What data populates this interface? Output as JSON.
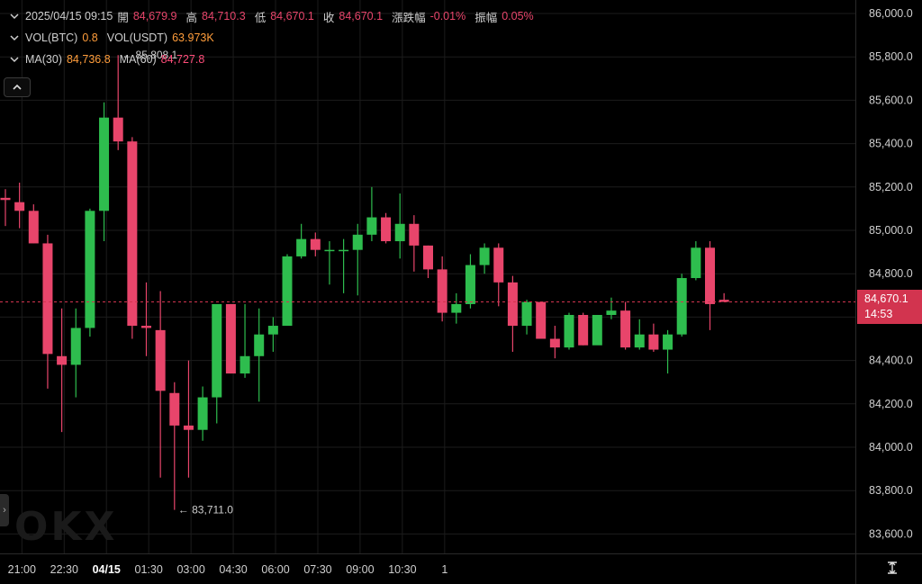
{
  "legend": {
    "datetime": "2025/04/15 09:15",
    "open_label": "開",
    "open": "84,679.9",
    "high_label": "高",
    "high": "84,710.3",
    "low_label": "低",
    "low": "84,670.1",
    "close_label": "收",
    "close": "84,670.1",
    "change_label": "漲跌幅",
    "change": "-0.01%",
    "amplitude_label": "振幅",
    "amplitude": "0.05%",
    "vol_btc_label": "VOL(BTC)",
    "vol_btc": "0.8",
    "vol_usdt_label": "VOL(USDT)",
    "vol_usdt": "63.973K",
    "ma30_label": "MA(30)",
    "ma30": "84,736.8",
    "ma60_label": "MA(60)",
    "ma60": "84,727.8"
  },
  "watermark": "OKX",
  "current_price": {
    "price": "84,670.1",
    "countdown": "14:53"
  },
  "colors": {
    "up": "#2ebd4e",
    "down": "#e8456b",
    "grid": "#1c1c1c",
    "tag": "#d2344f"
  },
  "chart_data": {
    "type": "candlestick",
    "interval_minutes": 30,
    "x_start": "2025/04/14 20:45",
    "ylim": [
      83520,
      86050
    ],
    "y_ticks": [
      "86,000.0",
      "85,800.0",
      "85,600.0",
      "85,400.0",
      "85,200.0",
      "85,000.0",
      "84,800.0",
      "84,600.0",
      "84,400.0",
      "84,200.0",
      "84,000.0",
      "83,800.0",
      "83,600.0"
    ],
    "y_tick_values": [
      86000,
      85800,
      85600,
      85400,
      85200,
      85000,
      84800,
      84600,
      84400,
      84200,
      84000,
      83800,
      83600
    ],
    "x_ticks": [
      "21:00",
      "22:30",
      "04/15",
      "01:30",
      "03:00",
      "04:30",
      "06:00",
      "07:30",
      "09:00",
      "10:30",
      "1"
    ],
    "x_tick_index": [
      0.5,
      3.5,
      6.5,
      9.5,
      12.5,
      15.5,
      18.5,
      21.5,
      24.5,
      27.5,
      30.5
    ],
    "max_annotation": "85,808.1",
    "min_annotation": "83,711.0",
    "candles": [
      {
        "o": 85150,
        "h": 85190,
        "l": 85020,
        "c": 85140
      },
      {
        "o": 85130,
        "h": 85220,
        "l": 85010,
        "c": 85090
      },
      {
        "o": 85090,
        "h": 85120,
        "l": 84940,
        "c": 84940
      },
      {
        "o": 84940,
        "h": 84980,
        "l": 84270,
        "c": 84430
      },
      {
        "o": 84420,
        "h": 84640,
        "l": 84070,
        "c": 84380
      },
      {
        "o": 84380,
        "h": 84640,
        "l": 84230,
        "c": 84550
      },
      {
        "o": 84550,
        "h": 85100,
        "l": 84510,
        "c": 85090
      },
      {
        "o": 85090,
        "h": 85590,
        "l": 84950,
        "c": 85520
      },
      {
        "o": 85520,
        "h": 85808.1,
        "l": 85370,
        "c": 85410
      },
      {
        "o": 85410,
        "h": 85430,
        "l": 84500,
        "c": 84560
      },
      {
        "o": 84560,
        "h": 84760,
        "l": 84420,
        "c": 84550
      },
      {
        "o": 84540,
        "h": 84720,
        "l": 83860,
        "c": 84260
      },
      {
        "o": 84250,
        "h": 84300,
        "l": 83711.0,
        "c": 84100
      },
      {
        "o": 84100,
        "h": 84400,
        "l": 83860,
        "c": 84080
      },
      {
        "o": 84080,
        "h": 84280,
        "l": 84030,
        "c": 84230
      },
      {
        "o": 84230,
        "h": 84660,
        "l": 84110,
        "c": 84660
      },
      {
        "o": 84660,
        "h": 84660,
        "l": 84340,
        "c": 84340
      },
      {
        "o": 84340,
        "h": 84660,
        "l": 84320,
        "c": 84420
      },
      {
        "o": 84420,
        "h": 84640,
        "l": 84210,
        "c": 84520
      },
      {
        "o": 84520,
        "h": 84600,
        "l": 84440,
        "c": 84560
      },
      {
        "o": 84560,
        "h": 84890,
        "l": 84560,
        "c": 84880
      },
      {
        "o": 84880,
        "h": 85030,
        "l": 84870,
        "c": 84960
      },
      {
        "o": 84960,
        "h": 84990,
        "l": 84880,
        "c": 84910
      },
      {
        "o": 84910,
        "h": 84950,
        "l": 84750,
        "c": 84910
      },
      {
        "o": 84910,
        "h": 84960,
        "l": 84710,
        "c": 84910
      },
      {
        "o": 84910,
        "h": 85030,
        "l": 84700,
        "c": 84980
      },
      {
        "o": 84980,
        "h": 85200,
        "l": 84950,
        "c": 85060
      },
      {
        "o": 85060,
        "h": 85080,
        "l": 84940,
        "c": 84950
      },
      {
        "o": 84950,
        "h": 85170,
        "l": 84870,
        "c": 85030
      },
      {
        "o": 85030,
        "h": 85070,
        "l": 84810,
        "c": 84930
      },
      {
        "o": 84930,
        "h": 84930,
        "l": 84780,
        "c": 84820
      },
      {
        "o": 84820,
        "h": 84880,
        "l": 84580,
        "c": 84620
      },
      {
        "o": 84620,
        "h": 84710,
        "l": 84570,
        "c": 84660
      },
      {
        "o": 84660,
        "h": 84890,
        "l": 84640,
        "c": 84840
      },
      {
        "o": 84840,
        "h": 84940,
        "l": 84800,
        "c": 84920
      },
      {
        "o": 84920,
        "h": 84940,
        "l": 84650,
        "c": 84760
      },
      {
        "o": 84760,
        "h": 84790,
        "l": 84440,
        "c": 84560
      },
      {
        "o": 84560,
        "h": 84680,
        "l": 84520,
        "c": 84670
      },
      {
        "o": 84670,
        "h": 84670,
        "l": 84500,
        "c": 84500
      },
      {
        "o": 84500,
        "h": 84560,
        "l": 84410,
        "c": 84460
      },
      {
        "o": 84460,
        "h": 84620,
        "l": 84450,
        "c": 84610
      },
      {
        "o": 84610,
        "h": 84620,
        "l": 84470,
        "c": 84470
      },
      {
        "o": 84470,
        "h": 84610,
        "l": 84480,
        "c": 84610
      },
      {
        "o": 84610,
        "h": 84690,
        "l": 84590,
        "c": 84630
      },
      {
        "o": 84630,
        "h": 84670,
        "l": 84450,
        "c": 84460
      },
      {
        "o": 84460,
        "h": 84590,
        "l": 84450,
        "c": 84520
      },
      {
        "o": 84520,
        "h": 84570,
        "l": 84440,
        "c": 84450
      },
      {
        "o": 84450,
        "h": 84540,
        "l": 84340,
        "c": 84520
      },
      {
        "o": 84520,
        "h": 84800,
        "l": 84510,
        "c": 84780
      },
      {
        "o": 84780,
        "h": 84950,
        "l": 84770,
        "c": 84920
      },
      {
        "o": 84920,
        "h": 84950,
        "l": 84540,
        "c": 84660
      },
      {
        "o": 84679.9,
        "h": 84710.3,
        "l": 84670.1,
        "c": 84670.1
      }
    ]
  }
}
